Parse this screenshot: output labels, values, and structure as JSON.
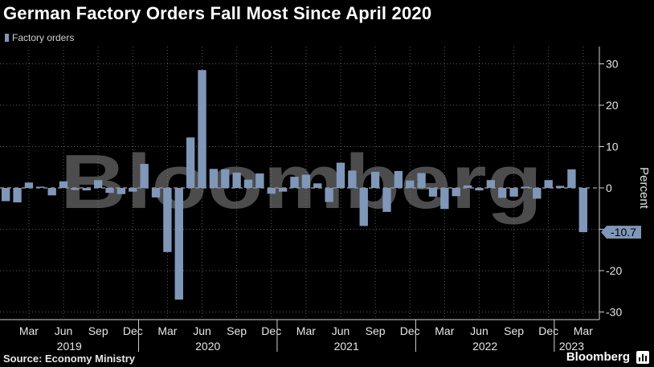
{
  "header": {
    "title": "German Factory Orders Fall Most Since April 2020"
  },
  "legend": {
    "label": "Factory orders"
  },
  "footer": {
    "source": "Source: Economy Ministry",
    "brand": "Bloomberg"
  },
  "watermark": {
    "text": "Bloomberg"
  },
  "colors": {
    "bar": "#7f97b8",
    "background": "#000000",
    "grid": "#5a5a5a",
    "text": "#ffffff"
  },
  "icons": {
    "brand_icon": "chart-icon"
  },
  "chart_data": {
    "type": "bar",
    "ylabel": "Percent",
    "ylim": [
      -33,
      33
    ],
    "yticks": [
      30,
      20,
      10,
      0,
      -10,
      -20,
      -30
    ],
    "x_start": "2019-01",
    "x": [
      "2019-01",
      "2019-02",
      "2019-03",
      "2019-04",
      "2019-05",
      "2019-06",
      "2019-07",
      "2019-08",
      "2019-09",
      "2019-10",
      "2019-11",
      "2019-12",
      "2020-01",
      "2020-02",
      "2020-03",
      "2020-04",
      "2020-05",
      "2020-06",
      "2020-07",
      "2020-08",
      "2020-09",
      "2020-10",
      "2020-11",
      "2020-12",
      "2021-01",
      "2021-02",
      "2021-03",
      "2021-04",
      "2021-05",
      "2021-06",
      "2021-07",
      "2021-08",
      "2021-09",
      "2021-10",
      "2021-11",
      "2021-12",
      "2022-01",
      "2022-02",
      "2022-03",
      "2022-04",
      "2022-05",
      "2022-06",
      "2022-07",
      "2022-08",
      "2022-09",
      "2022-10",
      "2022-11",
      "2022-12",
      "2023-01",
      "2023-02",
      "2023-03"
    ],
    "series": [
      {
        "name": "Factory orders",
        "values": [
          -3.2,
          -3.5,
          1.3,
          0.3,
          -1.8,
          1.6,
          -0.5,
          -0.6,
          1.9,
          -1.2,
          -1.5,
          -0.9,
          5.8,
          -2.3,
          -15.5,
          -27.0,
          12.2,
          28.5,
          4.6,
          4.5,
          3.7,
          2.0,
          3.5,
          -1.4,
          -0.9,
          2.7,
          3.2,
          1.1,
          -3.4,
          6.1,
          4.2,
          -9.2,
          3.9,
          -5.8,
          4.1,
          1.8,
          3.6,
          -2.1,
          -5.1,
          -2.0,
          0.6,
          -0.6,
          1.9,
          -2.4,
          -2.1,
          0.3,
          -2.6,
          1.9,
          0.5,
          4.5,
          -10.7
        ]
      }
    ],
    "x_tick_labels": [
      "Mar",
      "Jun",
      "Sep",
      "Dec",
      "Mar",
      "Jun",
      "Sep",
      "Dec",
      "Mar",
      "Jun",
      "Sep",
      "Dec",
      "Mar",
      "Jun",
      "Sep",
      "Dec",
      "Mar"
    ],
    "year_labels": [
      "2019",
      "2020",
      "2021",
      "2022",
      "2023"
    ],
    "last_value_label": "-10.7"
  }
}
